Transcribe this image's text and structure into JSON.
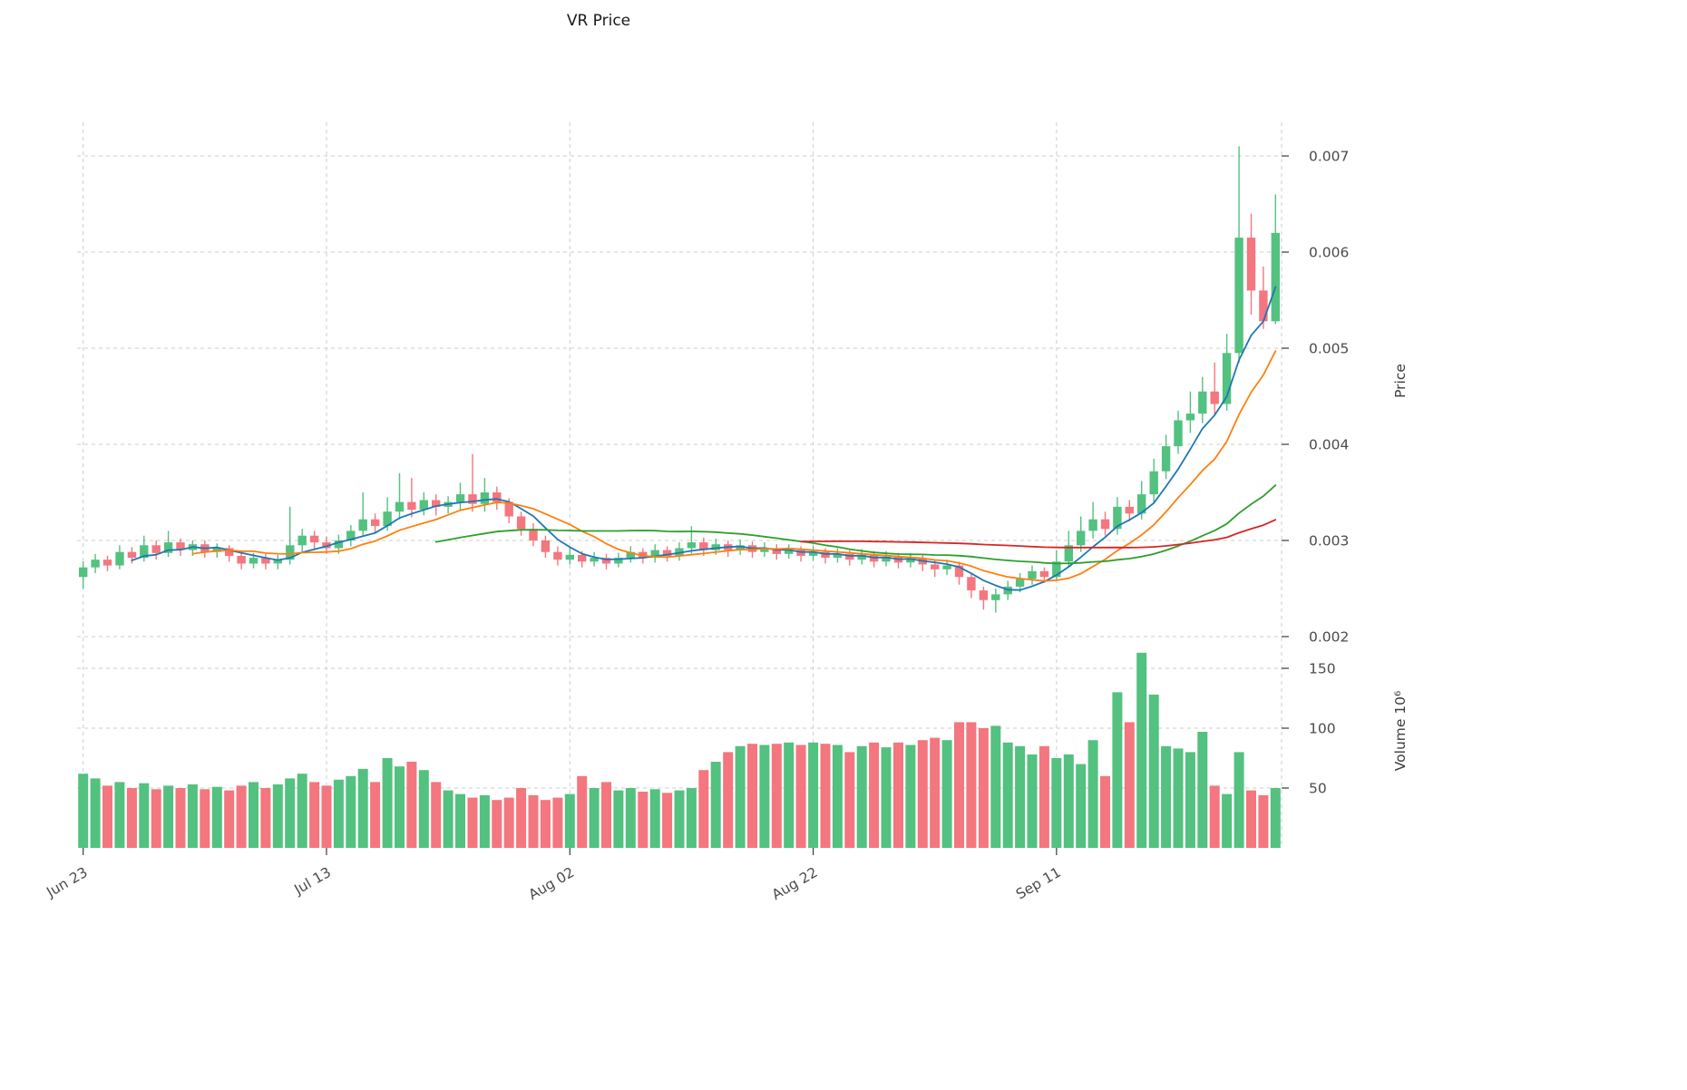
{
  "chart_data": {
    "type": "candlestick+volume",
    "title": "VR Price",
    "price_axis_label": "Price",
    "volume_axis_label": "Volume 10⁶",
    "legend": "none",
    "grid": "dashed",
    "x_tick_labels": [
      "Jun 23",
      "Jul 13",
      "Aug 02",
      "Aug 22",
      "Sep 11"
    ],
    "x_tick_indices": [
      0,
      20,
      40,
      60,
      80
    ],
    "price_ticks": [
      0.002,
      0.003,
      0.004,
      0.005,
      0.006,
      0.007
    ],
    "price_ylim": [
      0.002,
      0.0072
    ],
    "volume_ticks": [
      50,
      100,
      150
    ],
    "volume_unit": "millions",
    "up_color": "#53c17f",
    "down_color": "#f4767e",
    "ma_windows": [
      5,
      10,
      30,
      60
    ],
    "ma_colors": [
      "#1f77b4",
      "#ff7f0e",
      "#2ca02c",
      "#d62728"
    ],
    "grid_color": "#cdcdcd",
    "columns": [
      "date",
      "open",
      "high",
      "low",
      "close",
      "volume_m"
    ],
    "rows": [
      [
        "Jun 23",
        0.00262,
        0.00278,
        0.0025,
        0.00272,
        62
      ],
      [
        "Jun 24",
        0.00272,
        0.00286,
        0.00266,
        0.0028,
        58
      ],
      [
        "Jun 25",
        0.0028,
        0.00284,
        0.00268,
        0.00274,
        52
      ],
      [
        "Jun 26",
        0.00274,
        0.00295,
        0.0027,
        0.00288,
        55
      ],
      [
        "Jun 27",
        0.00288,
        0.00293,
        0.00276,
        0.00282,
        50
      ],
      [
        "Jun 28",
        0.00282,
        0.00305,
        0.00278,
        0.00295,
        54
      ],
      [
        "Jun 29",
        0.00295,
        0.003,
        0.0028,
        0.00287,
        49
      ],
      [
        "Jun 30",
        0.00287,
        0.0031,
        0.00283,
        0.00298,
        52
      ],
      [
        "Jul 01",
        0.00298,
        0.00302,
        0.00284,
        0.0029,
        50
      ],
      [
        "Jul 02",
        0.0029,
        0.003,
        0.00284,
        0.00296,
        53
      ],
      [
        "Jul 03",
        0.00296,
        0.003,
        0.00282,
        0.00288,
        49
      ],
      [
        "Jul 04",
        0.00288,
        0.00297,
        0.00282,
        0.00292,
        51
      ],
      [
        "Jul 05",
        0.00292,
        0.00295,
        0.00278,
        0.00284,
        48
      ],
      [
        "Jul 06",
        0.00284,
        0.00288,
        0.0027,
        0.00276,
        52
      ],
      [
        "Jul 07",
        0.00276,
        0.00287,
        0.00271,
        0.00282,
        55
      ],
      [
        "Jul 08",
        0.00282,
        0.00286,
        0.0027,
        0.00276,
        50
      ],
      [
        "Jul 09",
        0.00276,
        0.00285,
        0.0027,
        0.0028,
        53
      ],
      [
        "Jul 10",
        0.0028,
        0.00335,
        0.00275,
        0.00295,
        58
      ],
      [
        "Jul 11",
        0.00295,
        0.00312,
        0.00288,
        0.00305,
        62
      ],
      [
        "Jul 12",
        0.00305,
        0.0031,
        0.0029,
        0.00298,
        55
      ],
      [
        "Jul 13",
        0.00298,
        0.00304,
        0.00286,
        0.00292,
        52
      ],
      [
        "Jul 14",
        0.00292,
        0.00306,
        0.00286,
        0.003,
        57
      ],
      [
        "Jul 15",
        0.003,
        0.00316,
        0.00294,
        0.0031,
        60
      ],
      [
        "Jul 16",
        0.0031,
        0.0035,
        0.00304,
        0.00322,
        66
      ],
      [
        "Jul 17",
        0.00322,
        0.00328,
        0.00308,
        0.00315,
        55
      ],
      [
        "Jul 18",
        0.00315,
        0.00345,
        0.0031,
        0.0033,
        75
      ],
      [
        "Jul 19",
        0.0033,
        0.0037,
        0.00322,
        0.0034,
        68
      ],
      [
        "Jul 20",
        0.0034,
        0.00365,
        0.00324,
        0.00332,
        72
      ],
      [
        "Jul 21",
        0.00332,
        0.0035,
        0.00326,
        0.00342,
        65
      ],
      [
        "Jul 22",
        0.00342,
        0.00348,
        0.00326,
        0.00335,
        55
      ],
      [
        "Jul 23",
        0.00335,
        0.00346,
        0.00328,
        0.0034,
        48
      ],
      [
        "Jul 24",
        0.0034,
        0.0036,
        0.00332,
        0.00348,
        45
      ],
      [
        "Jul 25",
        0.00348,
        0.0039,
        0.0033,
        0.00338,
        42
      ],
      [
        "Jul 26",
        0.00338,
        0.00365,
        0.0033,
        0.0035,
        44
      ],
      [
        "Jul 27",
        0.0035,
        0.00356,
        0.00332,
        0.0034,
        40
      ],
      [
        "Jul 28",
        0.0034,
        0.00344,
        0.00318,
        0.00325,
        42
      ],
      [
        "Jul 29",
        0.00325,
        0.0033,
        0.00305,
        0.00312,
        50
      ],
      [
        "Jul 30",
        0.00312,
        0.00318,
        0.00294,
        0.003,
        44
      ],
      [
        "Jul 31",
        0.003,
        0.00305,
        0.00282,
        0.00288,
        40
      ],
      [
        "Aug 01",
        0.00288,
        0.00294,
        0.00274,
        0.0028,
        42
      ],
      [
        "Aug 02",
        0.0028,
        0.00292,
        0.00275,
        0.00285,
        45
      ],
      [
        "Aug 03",
        0.00285,
        0.00289,
        0.00272,
        0.00278,
        60
      ],
      [
        "Aug 04",
        0.00278,
        0.00288,
        0.00273,
        0.00282,
        50
      ],
      [
        "Aug 05",
        0.00282,
        0.00286,
        0.0027,
        0.00276,
        55
      ],
      [
        "Aug 06",
        0.00276,
        0.00287,
        0.00272,
        0.00282,
        48
      ],
      [
        "Aug 07",
        0.00282,
        0.00294,
        0.00277,
        0.00288,
        50
      ],
      [
        "Aug 08",
        0.00288,
        0.00292,
        0.00276,
        0.00282,
        47
      ],
      [
        "Aug 09",
        0.00282,
        0.00296,
        0.00277,
        0.0029,
        49
      ],
      [
        "Aug 10",
        0.0029,
        0.00294,
        0.00278,
        0.00284,
        46
      ],
      [
        "Aug 11",
        0.00284,
        0.00298,
        0.00279,
        0.00292,
        48
      ],
      [
        "Aug 12",
        0.00292,
        0.00315,
        0.00286,
        0.00298,
        50
      ],
      [
        "Aug 13",
        0.00298,
        0.00303,
        0.00284,
        0.0029,
        65
      ],
      [
        "Aug 14",
        0.0029,
        0.00302,
        0.00285,
        0.00296,
        72
      ],
      [
        "Aug 15",
        0.00296,
        0.003,
        0.00283,
        0.0029,
        80
      ],
      [
        "Aug 16",
        0.0029,
        0.00301,
        0.00285,
        0.00295,
        85
      ],
      [
        "Aug 17",
        0.00295,
        0.00299,
        0.00282,
        0.00288,
        87
      ],
      [
        "Aug 18",
        0.00288,
        0.00298,
        0.00283,
        0.00292,
        86
      ],
      [
        "Aug 19",
        0.00292,
        0.00296,
        0.0028,
        0.00286,
        87
      ],
      [
        "Aug 20",
        0.00286,
        0.00296,
        0.00281,
        0.0029,
        88
      ],
      [
        "Aug 21",
        0.0029,
        0.00294,
        0.00278,
        0.00284,
        86
      ],
      [
        "Aug 22",
        0.00284,
        0.00294,
        0.00279,
        0.00288,
        88
      ],
      [
        "Aug 23",
        0.00288,
        0.00292,
        0.00276,
        0.00282,
        87
      ],
      [
        "Aug 24",
        0.00282,
        0.00292,
        0.00277,
        0.00286,
        86
      ],
      [
        "Aug 25",
        0.00286,
        0.0029,
        0.00274,
        0.0028,
        80
      ],
      [
        "Aug 26",
        0.0028,
        0.00291,
        0.00275,
        0.00285,
        85
      ],
      [
        "Aug 27",
        0.00285,
        0.00289,
        0.00272,
        0.00278,
        88
      ],
      [
        "Aug 28",
        0.00278,
        0.00289,
        0.00273,
        0.00283,
        84
      ],
      [
        "Aug 29",
        0.00283,
        0.00287,
        0.00271,
        0.00277,
        88
      ],
      [
        "Aug 30",
        0.00277,
        0.00287,
        0.00272,
        0.00281,
        86
      ],
      [
        "Aug 31",
        0.00281,
        0.00285,
        0.00268,
        0.00275,
        90
      ],
      [
        "Sep 01",
        0.00275,
        0.0028,
        0.00262,
        0.0027,
        92
      ],
      [
        "Sep 02",
        0.0027,
        0.0028,
        0.00264,
        0.00274,
        90
      ],
      [
        "Sep 03",
        0.00274,
        0.00278,
        0.00254,
        0.00262,
        105
      ],
      [
        "Sep 04",
        0.00262,
        0.00266,
        0.0024,
        0.00248,
        105
      ],
      [
        "Sep 05",
        0.00248,
        0.00252,
        0.00228,
        0.00238,
        100
      ],
      [
        "Sep 06",
        0.00238,
        0.0025,
        0.00225,
        0.00244,
        102
      ],
      [
        "Sep 07",
        0.00244,
        0.00258,
        0.00238,
        0.00252,
        88
      ],
      [
        "Sep 08",
        0.00252,
        0.00266,
        0.00246,
        0.0026,
        85
      ],
      [
        "Sep 09",
        0.0026,
        0.00274,
        0.00254,
        0.00268,
        78
      ],
      [
        "Sep 10",
        0.00268,
        0.00272,
        0.00256,
        0.00262,
        85
      ],
      [
        "Sep 11",
        0.00262,
        0.0029,
        0.00258,
        0.00278,
        75
      ],
      [
        "Sep 12",
        0.00278,
        0.0031,
        0.00272,
        0.00295,
        78
      ],
      [
        "Sep 13",
        0.00295,
        0.00325,
        0.00288,
        0.0031,
        70
      ],
      [
        "Sep 14",
        0.0031,
        0.0034,
        0.00302,
        0.00322,
        90
      ],
      [
        "Sep 15",
        0.00322,
        0.0033,
        0.00305,
        0.00312,
        60
      ],
      [
        "Sep 16",
        0.00312,
        0.00345,
        0.00306,
        0.00335,
        130
      ],
      [
        "Sep 17",
        0.00335,
        0.00342,
        0.0032,
        0.00328,
        105
      ],
      [
        "Sep 18",
        0.00328,
        0.00362,
        0.00322,
        0.00348,
        163
      ],
      [
        "Sep 19",
        0.00348,
        0.00385,
        0.0034,
        0.00372,
        128
      ],
      [
        "Sep 20",
        0.00372,
        0.0041,
        0.00364,
        0.00398,
        85
      ],
      [
        "Sep 21",
        0.00398,
        0.00435,
        0.0039,
        0.00425,
        83
      ],
      [
        "Sep 22",
        0.00425,
        0.00455,
        0.00412,
        0.00432,
        80
      ],
      [
        "Sep 23",
        0.00432,
        0.0047,
        0.00422,
        0.00455,
        97
      ],
      [
        "Sep 24",
        0.00455,
        0.00485,
        0.0043,
        0.00442,
        52
      ],
      [
        "Sep 25",
        0.00442,
        0.00515,
        0.00435,
        0.00495,
        45
      ],
      [
        "Sep 26",
        0.00495,
        0.0071,
        0.00485,
        0.00615,
        80
      ],
      [
        "Sep 27",
        0.00615,
        0.0064,
        0.00535,
        0.0056,
        48
      ],
      [
        "Sep 28",
        0.0056,
        0.00585,
        0.0052,
        0.00528,
        44
      ],
      [
        "Sep 29",
        0.00528,
        0.0066,
        0.00525,
        0.0062,
        50
      ]
    ]
  }
}
